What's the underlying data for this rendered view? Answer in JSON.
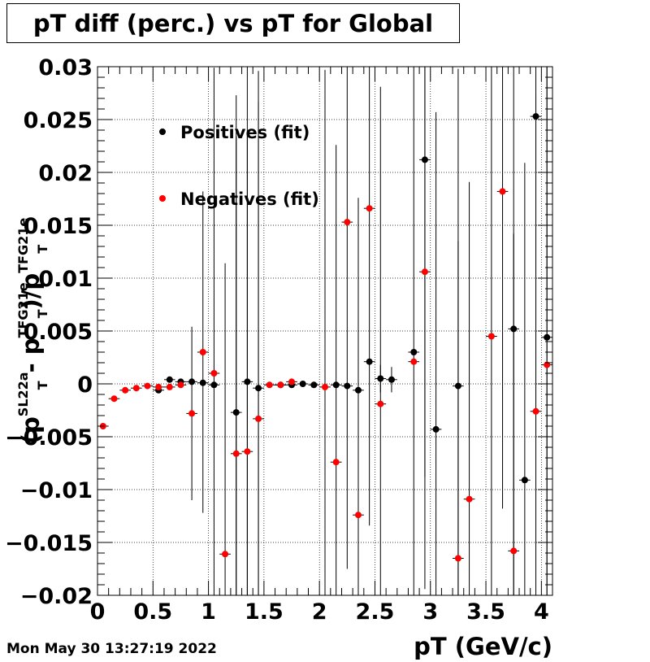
{
  "title": "pT diff (perc.) vs pT for Global",
  "timestamp": "Mon May 30 13:27:19 2022",
  "chart_data": {
    "type": "scatter",
    "title": "pT diff (perc.) vs pT for Global",
    "xlabel": "pT (GeV/c)",
    "ylabel": {
      "p1": "(p",
      "sup1": "SL22a",
      "sub1": "T",
      "p2": " - p",
      "sup2": "TFG21e",
      "sub2": "T",
      "p3": ")/p",
      "sup3": "TFG21e",
      "sub3": "T"
    },
    "xlim": [
      0,
      4.1
    ],
    "ylim": [
      -0.02,
      0.03
    ],
    "grid": true,
    "legend_position": "top-left",
    "x_ticks": [
      "0",
      "0.5",
      "1",
      "1.5",
      "2",
      "2.5",
      "3",
      "3.5",
      "4"
    ],
    "y_ticks": [
      "0.03",
      "0.025",
      "0.02",
      "0.015",
      "0.01",
      "0.005",
      "0",
      "−0.005",
      "−0.01",
      "−0.015",
      "−0.02"
    ],
    "colors": {
      "positives": "#000000",
      "negatives": "#ff0000"
    },
    "series": [
      {
        "name": "Positives (fit)",
        "color": "#000000",
        "points": [
          {
            "x": 0.55,
            "y": -0.0006,
            "err": 0.0002
          },
          {
            "x": 0.65,
            "y": 0.0004,
            "err": 0.0002
          },
          {
            "x": 0.75,
            "y": 0.0002,
            "err": 0.0002
          },
          {
            "x": 0.85,
            "y": 0.0002,
            "err": 0.0003
          },
          {
            "x": 0.95,
            "y": 0.0001,
            "err": 0.0003
          },
          {
            "x": 1.05,
            "y": -0.0001,
            "err": 0.03
          },
          {
            "x": 1.25,
            "y": -0.0027,
            "err": 0.03
          },
          {
            "x": 1.35,
            "y": 0.0002,
            "err": 0.03
          },
          {
            "x": 1.45,
            "y": -0.0004,
            "err": 0.03
          },
          {
            "x": 1.65,
            "y": -0.0001,
            "err": 0.0002
          },
          {
            "x": 1.75,
            "y": -0.0001,
            "err": 0.0002
          },
          {
            "x": 1.85,
            "y": 0.0,
            "err": 0.0002
          },
          {
            "x": 1.95,
            "y": -0.0001,
            "err": 0.0002
          },
          {
            "x": 2.15,
            "y": -0.0001,
            "err": 0.0003
          },
          {
            "x": 2.25,
            "y": -0.0002,
            "err": 0.0003
          },
          {
            "x": 2.35,
            "y": -0.0006,
            "err": 0.0003
          },
          {
            "x": 2.45,
            "y": 0.0021,
            "err": 0.0003
          },
          {
            "x": 2.55,
            "y": 0.0005,
            "err": 0.0013
          },
          {
            "x": 2.65,
            "y": 0.0004,
            "err": 0.0012
          },
          {
            "x": 2.85,
            "y": 0.003,
            "err": 0.0003
          },
          {
            "x": 2.95,
            "y": 0.0212,
            "err": 0.03
          },
          {
            "x": 3.05,
            "y": -0.0043,
            "err": 0.03
          },
          {
            "x": 3.25,
            "y": -0.0002,
            "err": 0.03
          },
          {
            "x": 3.75,
            "y": 0.0052,
            "err": 0.03
          },
          {
            "x": 3.85,
            "y": -0.0091,
            "err": 0.03
          },
          {
            "x": 3.95,
            "y": 0.0253,
            "err": 0.03
          },
          {
            "x": 4.05,
            "y": 0.0044,
            "err": 0.03
          }
        ]
      },
      {
        "name": "Negatives (fit)",
        "color": "#ff0000",
        "points": [
          {
            "x": 0.05,
            "y": -0.004,
            "err": 0.0002
          },
          {
            "x": 0.15,
            "y": -0.0014,
            "err": 0.0002
          },
          {
            "x": 0.25,
            "y": -0.0006,
            "err": 0.0002
          },
          {
            "x": 0.35,
            "y": -0.0004,
            "err": 0.0002
          },
          {
            "x": 0.45,
            "y": -0.0002,
            "err": 0.0002
          },
          {
            "x": 0.55,
            "y": -0.0003,
            "err": 0.0002
          },
          {
            "x": 0.65,
            "y": -0.0003,
            "err": 0.0002
          },
          {
            "x": 0.75,
            "y": -0.0001,
            "err": 0.0002
          },
          {
            "x": 0.85,
            "y": -0.0028,
            "err": 0.0082
          },
          {
            "x": 0.95,
            "y": 0.003,
            "err": 0.0152
          },
          {
            "x": 1.05,
            "y": 0.001,
            "err": 0.0003
          },
          {
            "x": 1.15,
            "y": -0.0161,
            "err": 0.0275
          },
          {
            "x": 1.25,
            "y": -0.0066,
            "err": 0.03
          },
          {
            "x": 1.35,
            "y": -0.0064,
            "err": 0.03
          },
          {
            "x": 1.45,
            "y": -0.0033,
            "err": 0.03
          },
          {
            "x": 1.55,
            "y": -0.0001,
            "err": 0.0002
          },
          {
            "x": 1.65,
            "y": -0.0001,
            "err": 0.0002
          },
          {
            "x": 1.75,
            "y": 0.0002,
            "err": 0.0002
          },
          {
            "x": 2.05,
            "y": -0.0003,
            "err": 0.03
          },
          {
            "x": 2.15,
            "y": -0.0074,
            "err": 0.03
          },
          {
            "x": 2.25,
            "y": 0.0153,
            "err": 0.0328
          },
          {
            "x": 2.35,
            "y": -0.0124,
            "err": 0.03
          },
          {
            "x": 2.45,
            "y": 0.0166,
            "err": 0.03
          },
          {
            "x": 2.55,
            "y": -0.0019,
            "err": 0.03
          },
          {
            "x": 2.85,
            "y": 0.0021,
            "err": 0.03
          },
          {
            "x": 2.95,
            "y": 0.0106,
            "err": 0.03
          },
          {
            "x": 3.25,
            "y": -0.0165,
            "err": 0.03
          },
          {
            "x": 3.35,
            "y": -0.0109,
            "err": 0.03
          },
          {
            "x": 3.55,
            "y": 0.0045,
            "err": 0.03
          },
          {
            "x": 3.65,
            "y": 0.0182,
            "err": 0.03
          },
          {
            "x": 3.75,
            "y": -0.0158,
            "err": 0.03
          },
          {
            "x": 3.95,
            "y": -0.0026,
            "err": 0.03
          },
          {
            "x": 4.05,
            "y": 0.0018,
            "err": 0.03
          }
        ]
      }
    ]
  }
}
